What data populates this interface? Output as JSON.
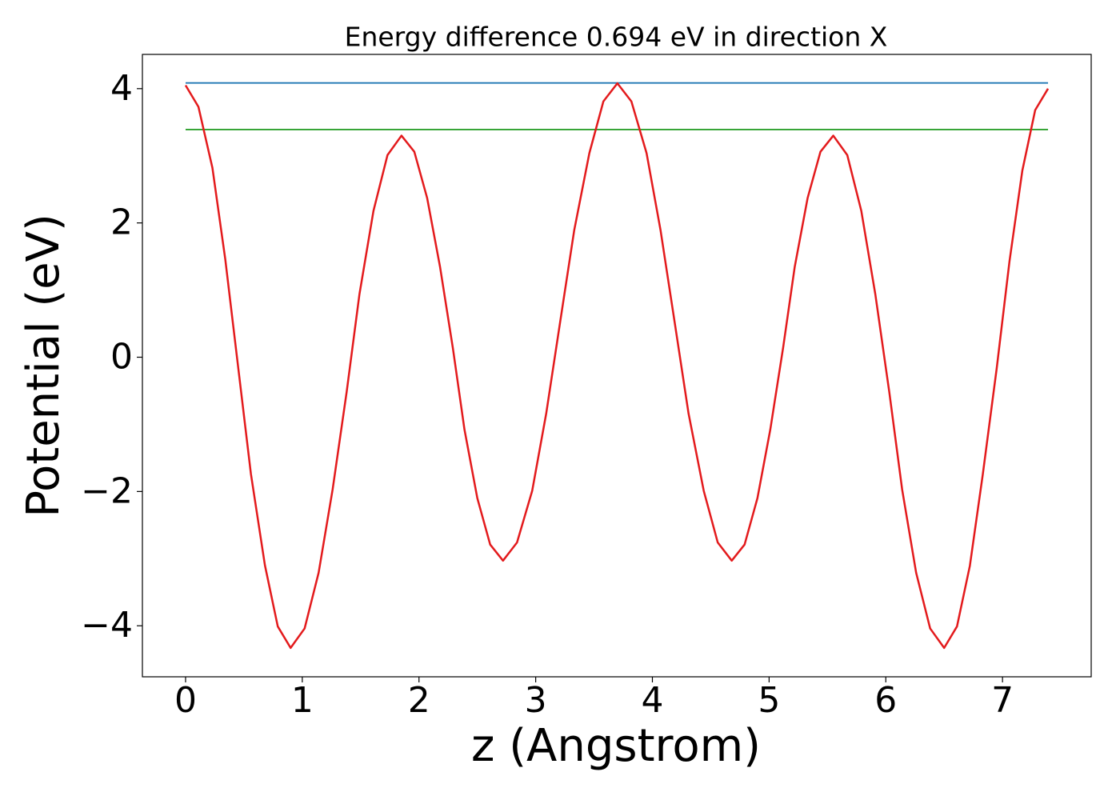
{
  "chart_data": {
    "type": "line",
    "title": "Energy difference 0.694 eV in direction X",
    "x_label": "z (Angstrom)",
    "y_label": "Potential (eV)",
    "xlim": [
      -0.37,
      7.76
    ],
    "ylim": [
      -4.76,
      4.51
    ],
    "xticks": [
      0,
      1,
      2,
      3,
      4,
      5,
      6,
      7
    ],
    "yticks": [
      {
        "value": -4,
        "label": "−4"
      },
      {
        "value": -2,
        "label": "−2"
      },
      0,
      2,
      4
    ],
    "grid": false,
    "series": [
      {
        "color": "#1f77b4",
        "x": [
          0,
          7.39
        ],
        "values": [
          4.085,
          4.085
        ]
      },
      {
        "color": "#2ca02c",
        "x": [
          0,
          7.39
        ],
        "values": [
          3.391,
          3.391
        ]
      },
      {
        "color": "#e31a1c",
        "x": [
          0,
          0.11,
          0.23,
          0.34,
          0.45,
          0.56,
          0.68,
          0.79,
          0.9,
          1.02,
          1.14,
          1.26,
          1.38,
          1.49,
          1.61,
          1.73,
          1.85,
          1.96,
          2.07,
          2.18,
          2.29,
          2.39,
          2.5,
          2.61,
          2.72,
          2.84,
          2.97,
          3.09,
          3.21,
          3.33,
          3.46,
          3.58,
          3.7,
          3.82,
          3.95,
          4.07,
          4.19,
          4.31,
          4.44,
          4.56,
          4.68,
          4.79,
          4.9,
          5.01,
          5.12,
          5.22,
          5.33,
          5.44,
          5.55,
          5.67,
          5.79,
          5.91,
          6.03,
          6.14,
          6.26,
          6.38,
          6.5,
          6.61,
          6.72,
          6.83,
          6.95,
          7.06,
          7.17,
          7.28,
          7.39
        ],
        "values": [
          4.05,
          3.73,
          2.82,
          1.46,
          -0.14,
          -1.74,
          -3.1,
          -4.01,
          -4.33,
          -4.04,
          -3.21,
          -1.97,
          -0.52,
          0.94,
          2.18,
          3.01,
          3.3,
          3.06,
          2.37,
          1.35,
          0.14,
          -1.08,
          -2.1,
          -2.79,
          -3.03,
          -2.76,
          -1.99,
          -0.84,
          0.53,
          1.89,
          3.04,
          3.81,
          4.08,
          3.81,
          3.04,
          1.89,
          0.53,
          -0.84,
          -1.99,
          -2.76,
          -3.03,
          -2.79,
          -2.1,
          -1.08,
          0.14,
          1.35,
          2.37,
          3.06,
          3.3,
          3.01,
          2.18,
          0.94,
          -0.52,
          -1.97,
          -3.21,
          -4.04,
          -4.33,
          -4.01,
          -3.11,
          -1.76,
          -0.17,
          1.43,
          2.78,
          3.68,
          4.0
        ]
      }
    ]
  }
}
